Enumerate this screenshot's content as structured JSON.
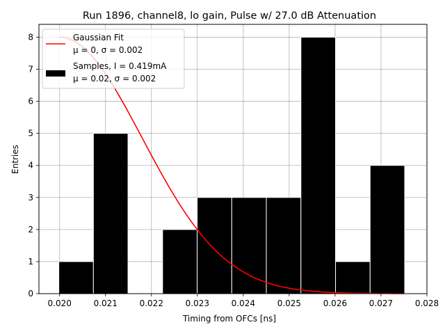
{
  "chart_data": {
    "type": "bar",
    "title": "Run 1896, channel8, lo gain, Pulse w/ 27.0 dB Attenuation",
    "xlabel": "Timing from OFCs [ns]",
    "ylabel": "Entries",
    "xlim": [
      0.01955,
      0.028
    ],
    "ylim": [
      0,
      8.4
    ],
    "grid": true,
    "legend_placement": "top-left",
    "xticks": [
      "0.020",
      "0.021",
      "0.022",
      "0.023",
      "0.024",
      "0.025",
      "0.026",
      "0.027",
      "0.028"
    ],
    "xtick_values": [
      0.02,
      0.021,
      0.022,
      0.023,
      0.024,
      0.025,
      0.026,
      0.027,
      0.028
    ],
    "yticks": [
      "0",
      "1",
      "2",
      "3",
      "4",
      "5",
      "6",
      "7",
      "8"
    ],
    "histogram": {
      "name": "Samples, I = 0.419mA",
      "stats": "μ = 0.02, σ = 0.002",
      "bin_edges": [
        0.0199829,
        0.0207362,
        0.0214895,
        0.0222428,
        0.0229961,
        0.0237494,
        0.0245027,
        0.025256,
        0.0260093,
        0.0267626,
        0.0275159
      ],
      "counts": [
        1,
        5,
        0,
        2,
        3,
        3,
        3,
        8,
        1,
        4
      ],
      "color": "#000000",
      "edge_color": "#ffffff"
    },
    "fit": {
      "name": "Gaussian Fit",
      "stats": "μ = 0, σ = 0.002",
      "color": "#ff0000",
      "x_range": [
        0.02,
        0.0275
      ],
      "peak_x": 0.02,
      "peak_y": 8.0,
      "sigma": 0.0018
    }
  }
}
